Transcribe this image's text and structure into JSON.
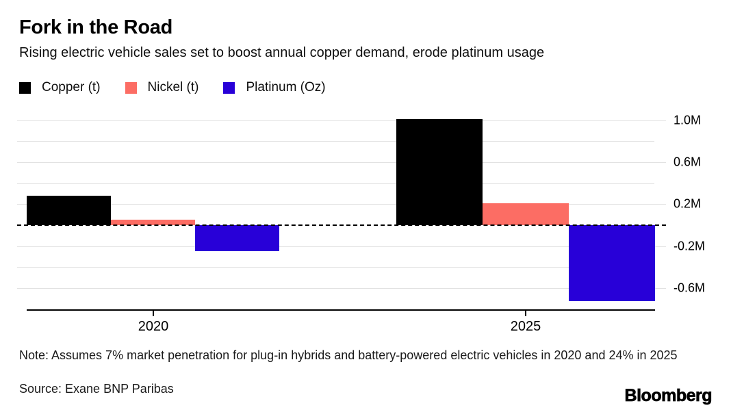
{
  "header": {
    "title": "Fork in the Road",
    "subtitle": "Rising electric vehicle sales set to boost annual copper demand, erode platinum usage"
  },
  "legend": [
    {
      "label": "Copper (t)",
      "color": "#000000"
    },
    {
      "label": "Nickel (t)",
      "color": "#fc6d64"
    },
    {
      "label": "Platinum (Oz)",
      "color": "#2800d8"
    }
  ],
  "chart_data": {
    "type": "bar",
    "categories": [
      "2020",
      "2025"
    ],
    "series": [
      {
        "name": "Copper (t)",
        "color": "#000000",
        "values": [
          0.28,
          1.01
        ]
      },
      {
        "name": "Nickel (t)",
        "color": "#fc6d64",
        "values": [
          0.05,
          0.21
        ]
      },
      {
        "name": "Platinum (Oz)",
        "color": "#2800d8",
        "values": [
          -0.25,
          -0.72
        ]
      }
    ],
    "unit": "M",
    "ytick_labels": [
      "1.0M",
      "0.6M",
      "0.2M",
      "-0.2M",
      "-0.6M"
    ],
    "ytick_values": [
      1.0,
      0.6,
      0.2,
      -0.2,
      -0.6
    ],
    "gridline_values": [
      1.0,
      0.8,
      0.6,
      0.4,
      0.2,
      -0.2,
      -0.4,
      -0.6
    ],
    "ylim": [
      -0.81,
      1.1
    ],
    "zero_line": "dashed-black",
    "grid": true,
    "legend_position": "top-left",
    "y_axis_side": "right"
  },
  "footer": {
    "note": "Note: Assumes 7% market penetration for plug-in hybrids and battery-powered electric vehicles in 2020 and 24% in 2025",
    "source": "Source: Exane BNP Paribas",
    "brand": "Bloomberg"
  }
}
